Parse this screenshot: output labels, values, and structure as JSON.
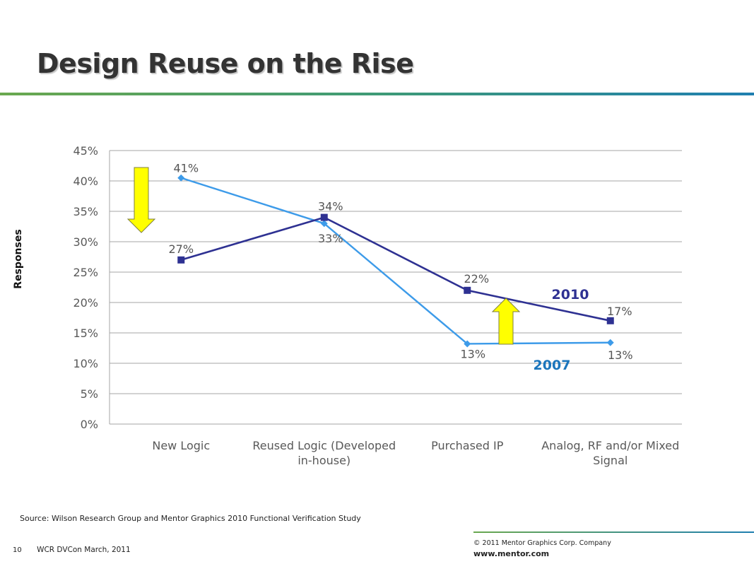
{
  "slide": {
    "title": "Design Reuse on the Rise",
    "source": "Source:  Wilson Research Group and Mentor Graphics 2010 Functional Verification Study",
    "footer_page": "10",
    "footer_event": "WCR DVCon March, 2011",
    "copyright": "© 2011 Mentor Graphics Corp. Company",
    "website": "www.mentor.com"
  },
  "chart_data": {
    "type": "line",
    "ylabel": "Responses",
    "categories": [
      "New Logic",
      "Reused Logic (Developed in-house)",
      "Purchased IP",
      "Analog, RF and/or Mixed Signal"
    ],
    "category_lines": [
      [
        "New Logic"
      ],
      [
        "Reused Logic (Developed",
        "in-house)"
      ],
      [
        "Purchased IP"
      ],
      [
        "Analog, RF and/or Mixed",
        "Signal"
      ]
    ],
    "ylim": [
      0,
      45
    ],
    "yticks": [
      0,
      5,
      10,
      15,
      20,
      25,
      30,
      35,
      40,
      45
    ],
    "ytick_labels": [
      "0%",
      "5%",
      "10%",
      "15%",
      "20%",
      "25%",
      "30%",
      "35%",
      "40%",
      "45%"
    ],
    "grid": true,
    "series": [
      {
        "name": "2007",
        "values": [
          40.5,
          33,
          13.2,
          13.4
        ],
        "labels": [
          "41%",
          "33%",
          "13%",
          "13%"
        ],
        "color": "#3d9be9",
        "marker": "diamond"
      },
      {
        "name": "2010",
        "values": [
          27,
          34,
          22,
          17
        ],
        "labels": [
          "27%",
          "34%",
          "22%",
          "17%"
        ],
        "color": "#2e3192",
        "marker": "square"
      }
    ],
    "series_label_colors": {
      "2007": "#1b75bc",
      "2010": "#2e3192"
    },
    "annotations": [
      {
        "type": "arrow",
        "direction": "down",
        "color": "#ffff00",
        "near": "New Logic"
      },
      {
        "type": "arrow",
        "direction": "up",
        "color": "#ffff00",
        "near": "Purchased IP"
      }
    ]
  }
}
